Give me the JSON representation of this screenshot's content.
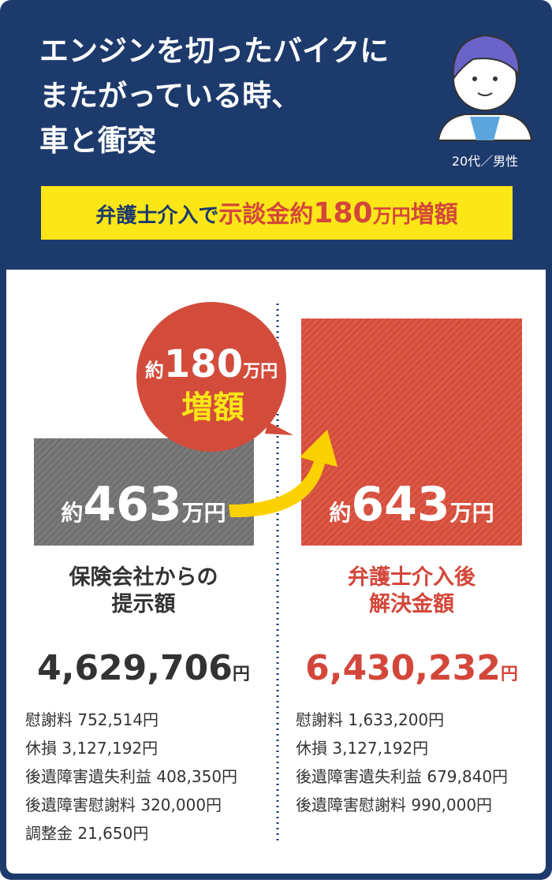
{
  "header": {
    "title_lines": [
      "エンジンを切ったバイクに",
      "またがっている時、",
      "車と衝突"
    ],
    "person": "20代／男性",
    "banner": {
      "lead": "弁護士介入で",
      "highlight": "示談金約",
      "number": "180",
      "unit": "万円",
      "tail": "増額"
    }
  },
  "bubble": {
    "prefix": "約",
    "number": "180",
    "unit": "万円",
    "label": "増額"
  },
  "before": {
    "box": {
      "prefix": "約",
      "number": "463",
      "unit": "万円"
    },
    "label_lines": [
      "保険会社からの",
      "提示額"
    ],
    "amount": "4,629,706",
    "amount_unit": "円",
    "items": [
      "慰謝料 752,514円",
      "休損 3,127,192円",
      "後遺障害遺失利益 408,350円",
      "後遺障害慰謝料 320,000円",
      "調整金 21,650円"
    ]
  },
  "after": {
    "box": {
      "prefix": "約",
      "number": "643",
      "unit": "万円"
    },
    "label_lines": [
      "弁護士介入後",
      "解決金額"
    ],
    "amount": "6,430,232",
    "amount_unit": "円",
    "items": [
      "慰謝料 1,633,200円",
      "休損 3,127,192円",
      "後遺障害遺失利益 679,840円",
      "後遺障害慰謝料 990,000円"
    ]
  }
}
